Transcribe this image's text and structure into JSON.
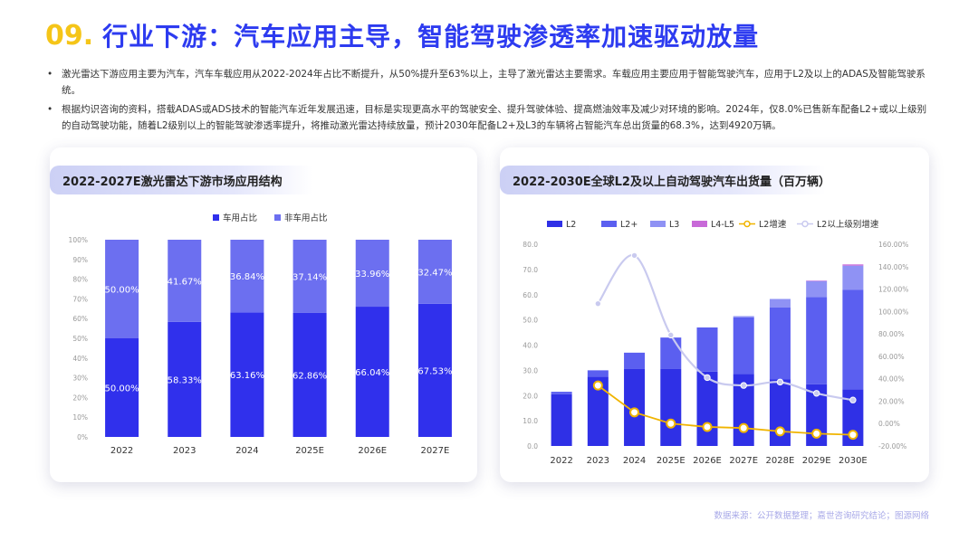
{
  "header": {
    "number": "09.",
    "title": "行业下游：汽车应用主导，智能驾驶渗透率加速驱动放量"
  },
  "bullets": [
    "激光雷达下游应用主要为汽车，汽车车载应用从2022-2024年占比不断提升，从50%提升至63%以上，主导了激光雷达主要需求。车载应用主要应用于智能驾驶汽车，应用于L2及以上的ADAS及智能驾驶系统。",
    "根据灼识咨询的资料，搭载ADAS或ADS技术的智能汽车近年发展迅速，目标是实现更高水平的驾驶安全、提升驾驶体验、提高燃油效率及减少对环境的影响。2024年，仅8.0%已售新车配备L2+或以上级别的自动驾驶功能，随着L2级别以上的智能驾驶渗透率提升，将推动激光雷达持续放量，预计2030年配备L2+及L3的车辆将占智能汽车总出货量的68.3%，达到4920万辆。"
  ],
  "source": "数据来源：公开数据整理；嘉世咨询研究结论；图源网络",
  "colors": {
    "title_blue": "#2d3bf0",
    "title_yellow": "#f5c518",
    "car_bar": "#3030ec",
    "noncar_bar": "#6c6ff0",
    "L2": "#2f30e6",
    "L2plus": "#5b5ff0",
    "L3": "#8f92f4",
    "L45": "#c86ad8",
    "L2_growth": "#f0b400",
    "L2above_growth": "#c9caef"
  },
  "chart_data": [
    {
      "type": "bar",
      "stacked": true,
      "title": "2022-2027E激光雷达下游市场应用结构",
      "categories": [
        "2022",
        "2023",
        "2024",
        "2025E",
        "2026E",
        "2027E"
      ],
      "ylim": [
        0,
        100
      ],
      "ticks": [
        "0%",
        "10%",
        "20%",
        "30%",
        "40%",
        "50%",
        "60%",
        "70%",
        "80%",
        "90%",
        "100%"
      ],
      "legend_position": "top",
      "series": [
        {
          "name": "车用占比",
          "values": [
            50.0,
            58.33,
            63.16,
            62.86,
            66.04,
            67.53
          ],
          "labels": [
            "50.00%",
            "58.33%",
            "63.16%",
            "62.86%",
            "66.04%",
            "67.53%"
          ]
        },
        {
          "name": "非车用占比",
          "values": [
            50.0,
            41.67,
            36.84,
            37.14,
            33.96,
            32.47
          ],
          "labels": [
            "50.00%",
            "41.67%",
            "36.84%",
            "37.14%",
            "33.96%",
            "32.47%"
          ]
        }
      ]
    },
    {
      "type": "bar",
      "stacked": true,
      "title": "2022-2030E全球L2及以上自动驾驶汽车出货量（百万辆）",
      "categories": [
        "2022",
        "2023",
        "2024",
        "2025E",
        "2026E",
        "2027E",
        "2028E",
        "2029E",
        "2030E"
      ],
      "ylim": [
        0,
        80
      ],
      "y_ticks": [
        "0.0",
        "10.0",
        "20.0",
        "30.0",
        "40.0",
        "50.0",
        "60.0",
        "70.0",
        "80.0"
      ],
      "y2lim": [
        -20,
        160
      ],
      "y2_ticks": [
        "-20.00%",
        "0.00%",
        "20.00%",
        "40.00%",
        "60.00%",
        "80.00%",
        "100.00%",
        "120.00%",
        "140.00%",
        "160.00%"
      ],
      "legend_position": "top",
      "series": [
        {
          "name": "L2",
          "values": [
            20.5,
            27.5,
            30.5,
            30.5,
            29.5,
            28.5,
            26.5,
            24.5,
            22.5
          ]
        },
        {
          "name": "L2+",
          "values": [
            1.0,
            2.5,
            6.5,
            12.5,
            17.5,
            22.5,
            28.5,
            34.5,
            39.5
          ]
        },
        {
          "name": "L3",
          "values": [
            0.0,
            0.0,
            0.0,
            0.0,
            0.0,
            0.5,
            3.3,
            6.4,
            9.5
          ]
        },
        {
          "name": "L4-L5",
          "values": [
            0.0,
            0.0,
            0.0,
            0.0,
            0.0,
            0.0,
            0.0,
            0.2,
            0.5
          ]
        }
      ],
      "lines": [
        {
          "name": "L2增速",
          "axis": "right",
          "values": [
            null,
            34.0,
            10.0,
            0.0,
            -3.0,
            -4.0,
            -7.0,
            -9.0,
            -10.0
          ]
        },
        {
          "name": "L2以上级别增速",
          "axis": "right",
          "values": [
            null,
            107.0,
            150.0,
            79.0,
            41.0,
            34.0,
            37.0,
            27.0,
            21.0
          ]
        }
      ]
    }
  ]
}
